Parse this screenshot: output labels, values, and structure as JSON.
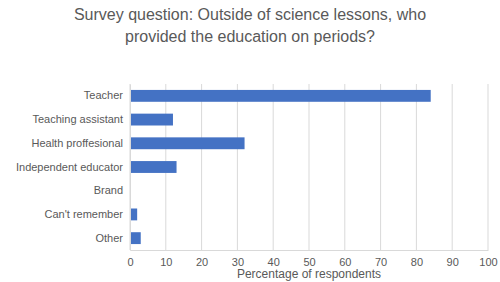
{
  "chart_data": {
    "type": "bar",
    "orientation": "horizontal",
    "title": "Survey question: Outside of science lessons, who provided the education on periods?",
    "x_label": "Percentage of respondents",
    "categories": [
      "Teacher",
      "Teaching assistant",
      "Health proffesional",
      "Independent educator",
      "Brand",
      "Can't remember",
      "Other"
    ],
    "values": [
      84,
      12,
      32,
      13,
      0,
      2,
      3
    ],
    "color": "#4472c4",
    "xlim": [
      0,
      100
    ],
    "xticks": [
      0,
      10,
      20,
      30,
      40,
      50,
      60,
      70,
      80,
      90,
      100
    ],
    "grid": true
  }
}
